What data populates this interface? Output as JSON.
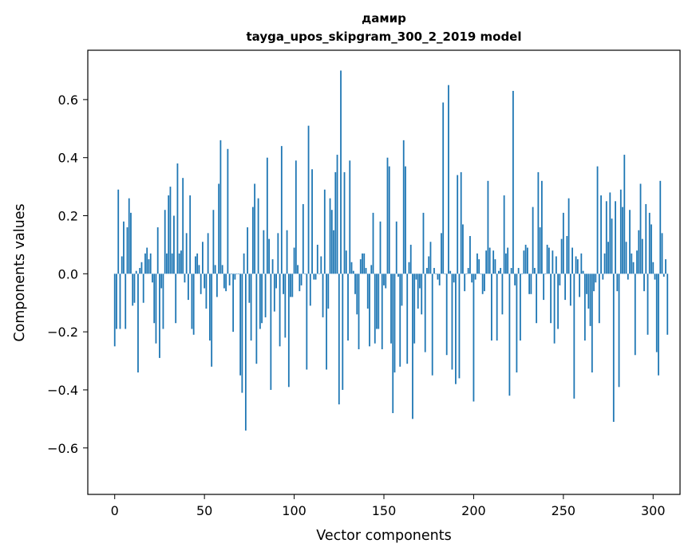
{
  "chart_data": {
    "type": "bar",
    "title": "дамир",
    "subtitle": "tayga_upos_skipgram_300_2_2019 model",
    "xlabel": "Vector components",
    "ylabel": "Components values",
    "xlim": [
      -15,
      315
    ],
    "ylim": [
      -0.76,
      0.77
    ],
    "xticks": [
      0,
      50,
      100,
      150,
      200,
      250,
      300
    ],
    "xtick_labels": [
      "0",
      "50",
      "100",
      "150",
      "200",
      "250",
      "300"
    ],
    "yticks": [
      -0.6,
      -0.4,
      -0.2,
      0.0,
      0.2,
      0.4,
      0.6
    ],
    "ytick_labels": [
      "−0.6",
      "−0.4",
      "−0.2",
      "0.0",
      "0.2",
      "0.4",
      "0.6"
    ],
    "grid": false,
    "bar_color": "#1f77b4",
    "x_start": 0,
    "values": [
      -0.25,
      -0.19,
      0.29,
      -0.19,
      0.06,
      0.18,
      -0.19,
      0.16,
      0.26,
      0.21,
      -0.11,
      -0.1,
      0.01,
      -0.34,
      0.02,
      0.04,
      -0.1,
      0.07,
      0.09,
      0.05,
      0.07,
      -0.03,
      -0.17,
      -0.24,
      0.16,
      -0.29,
      -0.05,
      -0.19,
      0.22,
      0.07,
      0.27,
      0.3,
      0.07,
      0.2,
      -0.17,
      0.38,
      0.07,
      0.08,
      0.33,
      -0.03,
      0.14,
      -0.09,
      0.27,
      -0.19,
      -0.21,
      0.06,
      0.07,
      0.03,
      -0.07,
      0.11,
      -0.05,
      -0.12,
      0.14,
      -0.23,
      -0.32,
      0.22,
      0.03,
      -0.08,
      0.31,
      0.46,
      0.03,
      -0.05,
      -0.06,
      0.43,
      -0.04,
      0.0,
      -0.2,
      -0.02,
      0.0,
      0.0,
      -0.35,
      -0.41,
      0.07,
      -0.54,
      0.16,
      -0.1,
      -0.23,
      0.23,
      0.31,
      -0.31,
      0.26,
      -0.19,
      -0.17,
      0.15,
      -0.15,
      0.4,
      0.12,
      -0.4,
      0.05,
      -0.13,
      -0.05,
      0.14,
      -0.25,
      0.44,
      -0.07,
      -0.22,
      0.15,
      -0.39,
      -0.08,
      -0.08,
      0.09,
      0.39,
      0.03,
      -0.06,
      -0.04,
      0.24,
      0.0,
      -0.33,
      0.51,
      -0.11,
      0.36,
      -0.02,
      -0.02,
      0.1,
      0.0,
      0.06,
      -0.15,
      0.29,
      -0.33,
      -0.12,
      0.26,
      0.22,
      0.15,
      0.35,
      0.41,
      -0.45,
      0.7,
      -0.4,
      0.35,
      0.08,
      -0.23,
      0.39,
      0.04,
      0.01,
      -0.07,
      -0.14,
      -0.26,
      0.05,
      0.07,
      0.07,
      0.02,
      -0.12,
      -0.25,
      0.03,
      0.21,
      -0.24,
      -0.19,
      -0.19,
      0.18,
      -0.26,
      -0.04,
      -0.05,
      0.4,
      0.37,
      -0.24,
      -0.48,
      -0.34,
      0.18,
      -0.01,
      -0.32,
      -0.11,
      0.46,
      0.37,
      -0.31,
      0.04,
      0.1,
      -0.5,
      -0.24,
      -0.02,
      -0.12,
      -0.05,
      -0.14,
      0.21,
      -0.27,
      0.02,
      0.06,
      0.11,
      -0.35,
      0.02,
      0.0,
      -0.02,
      -0.04,
      0.14,
      0.59,
      0.0,
      -0.28,
      0.65,
      0.01,
      -0.33,
      -0.03,
      -0.38,
      0.34,
      -0.36,
      0.35,
      0.17,
      -0.06,
      0.0,
      0.02,
      0.13,
      -0.03,
      -0.44,
      -0.02,
      0.07,
      0.05,
      0.0,
      -0.07,
      -0.06,
      0.08,
      0.32,
      0.09,
      -0.23,
      0.08,
      0.05,
      -0.23,
      0.01,
      0.02,
      -0.14,
      0.27,
      0.07,
      0.09,
      -0.42,
      0.02,
      0.63,
      -0.04,
      -0.34,
      0.02,
      -0.23,
      0.0,
      0.08,
      0.1,
      0.09,
      -0.07,
      -0.07,
      0.23,
      0.02,
      -0.17,
      0.35,
      0.16,
      0.32,
      -0.09,
      0.0,
      0.1,
      0.09,
      -0.17,
      0.08,
      -0.24,
      0.06,
      -0.19,
      -0.04,
      0.12,
      0.21,
      -0.09,
      0.13,
      0.26,
      -0.11,
      0.09,
      -0.43,
      0.06,
      0.05,
      -0.08,
      0.07,
      0.01,
      -0.23,
      -0.07,
      -0.12,
      -0.18,
      -0.34,
      -0.06,
      -0.03,
      0.37,
      -0.17,
      0.27,
      -0.02,
      0.07,
      0.25,
      0.11,
      0.28,
      0.19,
      -0.51,
      0.25,
      -0.06,
      -0.39,
      0.29,
      0.23,
      0.41,
      0.11,
      -0.02,
      0.22,
      0.07,
      0.04,
      -0.28,
      0.08,
      0.15,
      0.31,
      0.12,
      -0.06,
      0.24,
      -0.21,
      0.21,
      0.17,
      0.04,
      -0.02,
      -0.27,
      -0.35,
      0.32,
      0.14,
      -0.01,
      0.05,
      -0.21
    ]
  }
}
